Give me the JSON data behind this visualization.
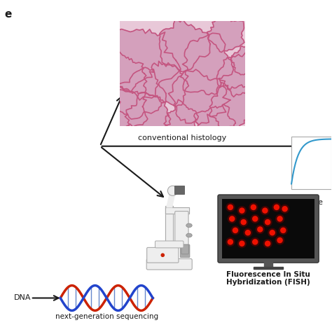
{
  "background_color": "#ffffff",
  "labels": {
    "conventional_histology": "conventional histology",
    "next_ge": "next-ge",
    "fish_label": "Fluorescence In Situ\nHybridization (FISH)",
    "ngs_label": "next-generation sequencing",
    "dna_label": "DNA"
  },
  "colors": {
    "arrow": "#1a1a1a",
    "hist_bg": "#e8c8d8",
    "hist_line": "#c45580",
    "hist_fill": "#d4a0bc",
    "tumor_outer": "#e8a8b0",
    "tumor_inner": "#d06878",
    "tumor_nucleus": "#a03050",
    "lung_fill": "#e8b0a8",
    "lung_edge": "#c88070",
    "lung_tumor": "#c04040",
    "dna_red": "#cc2200",
    "dna_blue": "#2244cc",
    "dna_link": "#6688cc",
    "fish_bg": "#111111",
    "fish_dot": "#cc1100",
    "monitor_dark": "#333333",
    "monitor_stand": "#555555",
    "mic_white": "#eeeeee",
    "mic_gray": "#aaaaaa",
    "mic_dark": "#555555",
    "text_color": "#1a1a1a"
  }
}
